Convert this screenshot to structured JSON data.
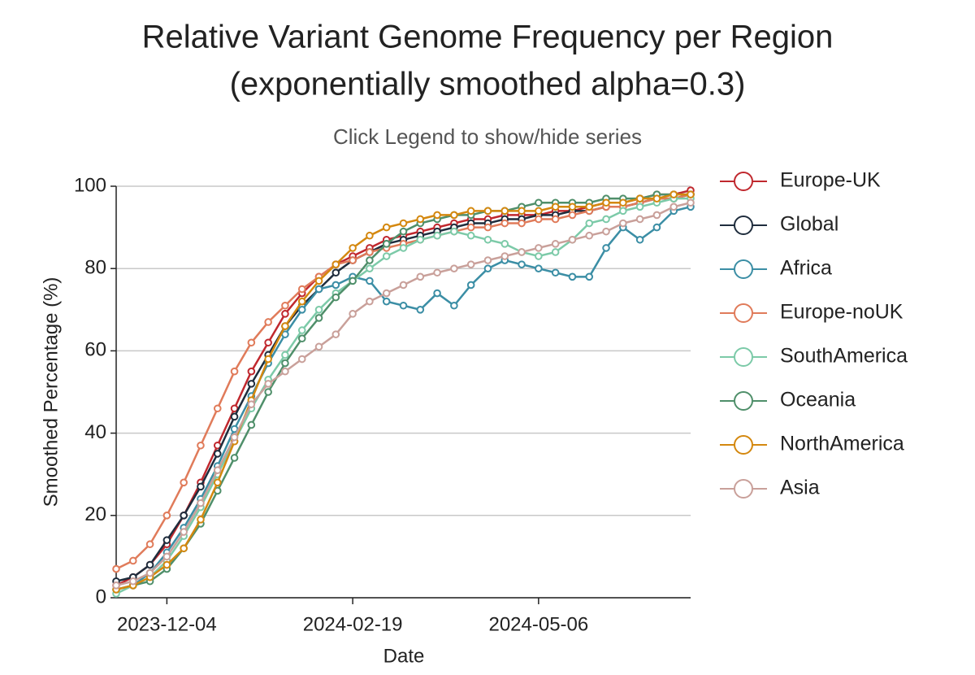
{
  "chart_data": {
    "type": "line",
    "title": [
      "Relative Variant Genome Frequency per Region",
      "(exponentially smoothed alpha=0.3)"
    ],
    "subtitle": "Click Legend to show/hide series",
    "x_label": "Date",
    "y_label": "Smoothed Percentage (%)",
    "x": [
      "2023-11-13",
      "2023-11-20",
      "2023-11-27",
      "2023-12-04",
      "2023-12-11",
      "2023-12-18",
      "2023-12-25",
      "2024-01-01",
      "2024-01-08",
      "2024-01-15",
      "2024-01-22",
      "2024-01-29",
      "2024-02-05",
      "2024-02-12",
      "2024-02-19",
      "2024-02-26",
      "2024-03-04",
      "2024-03-11",
      "2024-03-18",
      "2024-03-25",
      "2024-04-01",
      "2024-04-08",
      "2024-04-15",
      "2024-04-22",
      "2024-04-29",
      "2024-05-06",
      "2024-05-13",
      "2024-05-20",
      "2024-05-27",
      "2024-06-03",
      "2024-06-10",
      "2024-06-17",
      "2024-06-24",
      "2024-07-01",
      "2024-07-08"
    ],
    "xlim": [
      "2023-11-13",
      "2024-07-08"
    ],
    "xticks": [
      "2023-12-04",
      "2024-02-19",
      "2024-05-06"
    ],
    "ylim": [
      0,
      100
    ],
    "yticks": [
      0,
      20,
      40,
      60,
      80,
      100
    ],
    "grid": true,
    "series": [
      {
        "name": "Europe-UK",
        "color": "#c0282e",
        "values": [
          3,
          5,
          8,
          13,
          20,
          28,
          37,
          46,
          55,
          62,
          69,
          74,
          78,
          81,
          83,
          85,
          87,
          88,
          89,
          90,
          91,
          92,
          92,
          93,
          93,
          93,
          94,
          94,
          95,
          96,
          96,
          97,
          98,
          98,
          99
        ]
      },
      {
        "name": "Global",
        "color": "#1f2d3d",
        "values": [
          4,
          5,
          8,
          14,
          20,
          27,
          35,
          44,
          52,
          59,
          66,
          71,
          75,
          79,
          82,
          84,
          86,
          87,
          88,
          89,
          90,
          91,
          91,
          92,
          92,
          93,
          93,
          94,
          94,
          95,
          95,
          96,
          97,
          97,
          98
        ]
      },
      {
        "name": "Africa",
        "color": "#3b8ea5",
        "values": [
          2,
          3,
          6,
          11,
          17,
          24,
          32,
          41,
          49,
          57,
          64,
          70,
          75,
          76,
          78,
          77,
          72,
          71,
          70,
          74,
          71,
          76,
          80,
          82,
          81,
          80,
          79,
          78,
          78,
          85,
          90,
          87,
          90,
          94,
          95
        ]
      },
      {
        "name": "Europe-noUK",
        "color": "#e07b5a",
        "values": [
          7,
          9,
          13,
          20,
          28,
          37,
          46,
          55,
          62,
          67,
          71,
          75,
          78,
          81,
          82,
          84,
          85,
          86,
          87,
          88,
          89,
          90,
          90,
          91,
          91,
          92,
          92,
          93,
          94,
          95,
          95,
          96,
          97,
          97,
          98
        ]
      },
      {
        "name": "SouthAmerica",
        "color": "#7ccaa8",
        "values": [
          1,
          3,
          5,
          9,
          15,
          22,
          30,
          38,
          46,
          53,
          59,
          65,
          70,
          74,
          77,
          80,
          83,
          85,
          87,
          88,
          89,
          88,
          87,
          86,
          84,
          83,
          84,
          87,
          91,
          92,
          94,
          95,
          96,
          97,
          97
        ]
      },
      {
        "name": "Oceania",
        "color": "#4f8f6a",
        "values": [
          2,
          3,
          4,
          7,
          12,
          18,
          26,
          34,
          42,
          50,
          57,
          63,
          68,
          73,
          77,
          82,
          86,
          89,
          91,
          92,
          93,
          93,
          94,
          94,
          95,
          96,
          96,
          96,
          96,
          97,
          97,
          97,
          98,
          98,
          98
        ]
      },
      {
        "name": "NorthAmerica",
        "color": "#d4880f",
        "values": [
          2,
          3,
          5,
          8,
          12,
          19,
          28,
          38,
          48,
          58,
          66,
          72,
          77,
          81,
          85,
          88,
          90,
          91,
          92,
          93,
          93,
          94,
          94,
          94,
          94,
          94,
          95,
          95,
          95,
          96,
          96,
          97,
          97,
          98,
          98
        ]
      },
      {
        "name": "Asia",
        "color": "#c9a09a",
        "values": [
          3,
          4,
          6,
          10,
          16,
          23,
          31,
          39,
          47,
          52,
          55,
          58,
          61,
          64,
          69,
          72,
          74,
          76,
          78,
          79,
          80,
          81,
          82,
          83,
          84,
          85,
          86,
          87,
          88,
          89,
          91,
          92,
          93,
          95,
          96
        ]
      }
    ]
  }
}
